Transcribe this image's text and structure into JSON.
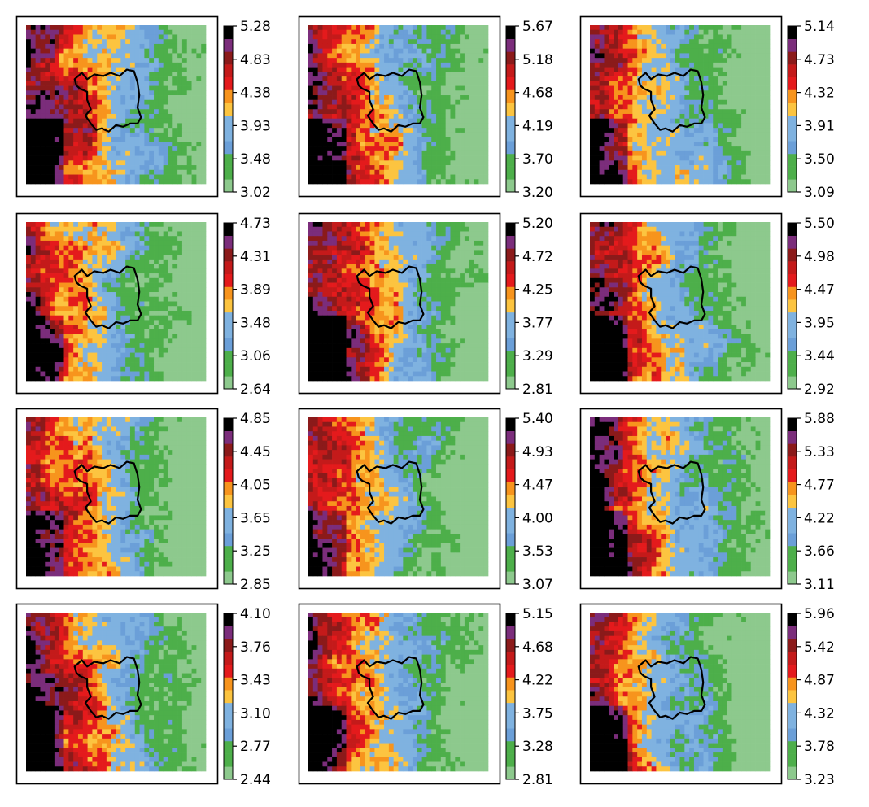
{
  "figure": {
    "panel_count": 12,
    "grid": "4x3"
  },
  "colormap": {
    "colors": [
      "#8dc98d",
      "#4daf4a",
      "#4daf4a",
      "#6b9fd8",
      "#7fb2e0",
      "#7fb2e0",
      "#fcc440",
      "#f7941d",
      "#e41a1c",
      "#c41a1a",
      "#8b1a1a",
      "#7b2d7b",
      "#000000"
    ],
    "region_outline_color": "#000000"
  },
  "chart_data": [
    {
      "type": "heatmap",
      "panel": 1,
      "colorbar_ticks": [
        "3.02",
        "3.48",
        "3.93",
        "4.38",
        "4.83",
        "5.28"
      ],
      "vmin": 3.02,
      "vmax": 5.28
    },
    {
      "type": "heatmap",
      "panel": 2,
      "colorbar_ticks": [
        "3.20",
        "3.70",
        "4.19",
        "4.68",
        "5.18",
        "5.67"
      ],
      "vmin": 3.2,
      "vmax": 5.67
    },
    {
      "type": "heatmap",
      "panel": 3,
      "colorbar_ticks": [
        "3.09",
        "3.50",
        "3.91",
        "4.32",
        "4.73",
        "5.14"
      ],
      "vmin": 3.09,
      "vmax": 5.14
    },
    {
      "type": "heatmap",
      "panel": 4,
      "colorbar_ticks": [
        "2.64",
        "3.06",
        "3.48",
        "3.89",
        "4.31",
        "4.73"
      ],
      "vmin": 2.64,
      "vmax": 4.73
    },
    {
      "type": "heatmap",
      "panel": 5,
      "colorbar_ticks": [
        "2.81",
        "3.29",
        "3.77",
        "4.25",
        "4.72",
        "5.20"
      ],
      "vmin": 2.81,
      "vmax": 5.2
    },
    {
      "type": "heatmap",
      "panel": 6,
      "colorbar_ticks": [
        "2.92",
        "3.44",
        "3.95",
        "4.47",
        "4.98",
        "5.50"
      ],
      "vmin": 2.92,
      "vmax": 5.5
    },
    {
      "type": "heatmap",
      "panel": 7,
      "colorbar_ticks": [
        "2.85",
        "3.25",
        "3.65",
        "4.05",
        "4.45",
        "4.85"
      ],
      "vmin": 2.85,
      "vmax": 4.85
    },
    {
      "type": "heatmap",
      "panel": 8,
      "colorbar_ticks": [
        "3.07",
        "3.53",
        "4.00",
        "4.47",
        "4.93",
        "5.40"
      ],
      "vmin": 3.07,
      "vmax": 5.4
    },
    {
      "type": "heatmap",
      "panel": 9,
      "colorbar_ticks": [
        "3.11",
        "3.66",
        "4.22",
        "4.77",
        "5.33",
        "5.88"
      ],
      "vmin": 3.11,
      "vmax": 5.88
    },
    {
      "type": "heatmap",
      "panel": 10,
      "colorbar_ticks": [
        "2.44",
        "2.77",
        "3.10",
        "3.43",
        "3.76",
        "4.10"
      ],
      "vmin": 2.44,
      "vmax": 4.1
    },
    {
      "type": "heatmap",
      "panel": 11,
      "colorbar_ticks": [
        "2.81",
        "3.28",
        "3.75",
        "4.22",
        "4.68",
        "5.15"
      ],
      "vmin": 2.81,
      "vmax": 5.15
    },
    {
      "type": "heatmap",
      "panel": 12,
      "colorbar_ticks": [
        "3.23",
        "3.78",
        "4.32",
        "4.87",
        "5.42",
        "5.96"
      ],
      "vmin": 3.23,
      "vmax": 5.96
    }
  ]
}
